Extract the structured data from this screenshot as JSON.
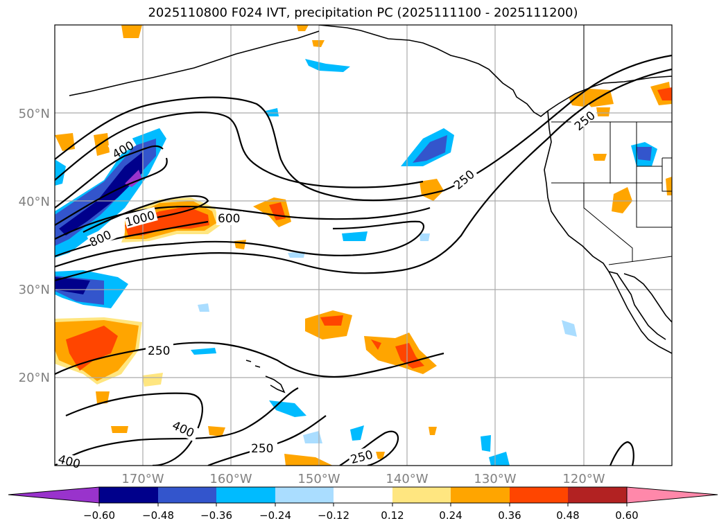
{
  "title": "2025110800 F024 IVT, precipitation PC (2025111100 - 2025111200)",
  "map": {
    "projection": "cylindrical",
    "lon_range": [
      -180,
      -110
    ],
    "lat_range": [
      10,
      60
    ],
    "lon_ticks": [
      {
        "value": -170,
        "label": "170°W"
      },
      {
        "value": -160,
        "label": "160°W"
      },
      {
        "value": -150,
        "label": "150°W"
      },
      {
        "value": -140,
        "label": "140°W"
      },
      {
        "value": -130,
        "label": "130°W"
      },
      {
        "value": -120,
        "label": "120°W"
      }
    ],
    "lat_ticks": [
      {
        "value": 20,
        "label": "20°N"
      },
      {
        "value": 30,
        "label": "30°N"
      },
      {
        "value": 40,
        "label": "40°N"
      },
      {
        "value": 50,
        "label": "50°N"
      }
    ],
    "ivt_contour_labels": [
      "250",
      "400",
      "600",
      "800",
      "1000"
    ],
    "contour_label_text": {
      "l250": "250",
      "l400": "400",
      "l600": "600",
      "l800": "800",
      "l1000": "1000"
    }
  },
  "colorbar": {
    "ticks": [
      "−0.60",
      "−0.48",
      "−0.36",
      "−0.24",
      "−0.12",
      "0.12",
      "0.24",
      "0.36",
      "0.48",
      "0.60"
    ],
    "colors": [
      "#9933cc",
      "#00008b",
      "#3355cc",
      "#00bbff",
      "#aaddff",
      "#ffffff",
      "#ffe680",
      "#ffa500",
      "#ff4500",
      "#b22222",
      "#ff88aa",
      "#ff88aa"
    ]
  },
  "legend_colors": {
    "neg_strong": "#00008b",
    "neg_mid": "#3355cc",
    "neg_light": "#00bbff",
    "neg_pale": "#aaddff",
    "neg_extreme": "#9933cc",
    "pos_pale": "#ffe680",
    "pos_light": "#ffa500",
    "pos_mid": "#ff4500",
    "pos_strong": "#b22222"
  }
}
